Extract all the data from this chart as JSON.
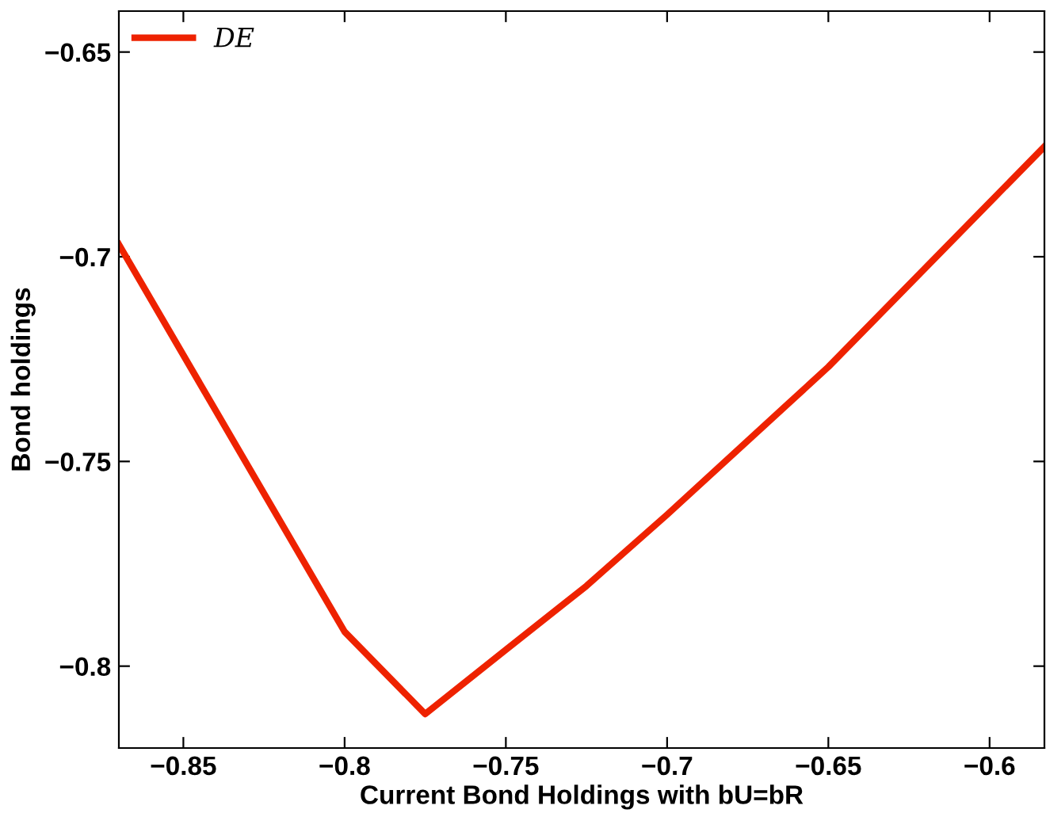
{
  "chart_data": {
    "type": "line",
    "xlabel": "Current Bond Holdings with bU=bR",
    "ylabel": "Bond holdings",
    "x": [
      -0.87,
      -0.8,
      -0.775,
      -0.75,
      -0.725,
      -0.7,
      -0.65,
      -0.583
    ],
    "series": [
      {
        "name": "DE",
        "color": "#ee2200",
        "values": [
          -0.697,
          -0.7916,
          -0.8117,
          -0.796,
          -0.7804,
          -0.763,
          -0.7269,
          -0.6731
        ]
      }
    ],
    "xlim": [
      -0.87,
      -0.583
    ],
    "xticks": [
      -0.85,
      -0.8,
      -0.75,
      -0.7,
      -0.65,
      -0.6
    ],
    "ylim": [
      -0.82,
      -0.64
    ],
    "yticks": [
      -0.8,
      -0.75,
      -0.7,
      -0.65
    ],
    "grid": false,
    "legend": "top left",
    "marker": "none",
    "line_style": "solid"
  }
}
